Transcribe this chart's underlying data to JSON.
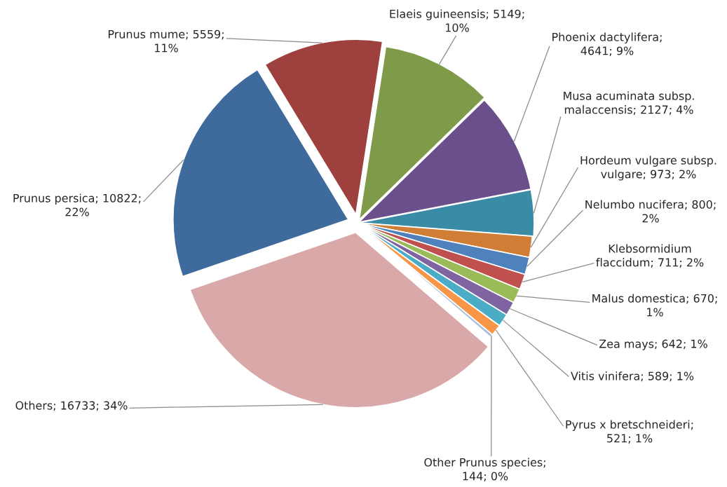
{
  "chart_data": {
    "type": "pie",
    "categories": [
      "Prunus persica; 10822; 22%",
      "Prunus mume; 5559; 11%",
      "Elaeis guineensis; 5149; 10%",
      "Phoenix dactylifera; 4641; 9%",
      "Musa acuminata subsp. malaccensis; 2127; 4%",
      "Hordeum vulgare subsp. vulgare; 973; 2%",
      "Nelumbo nucifera; 800; 2%",
      "Klebsormidium flaccidum; 711; 2%",
      "Malus domestica; 670; 1%",
      "Zea mays; 642; 1%",
      "Vitis vinifera; 589; 1%",
      "Pyrus x bretschneideri; 521; 1%",
      "Other Prunus species; 144; 0%",
      "Others; 16733; 34%"
    ],
    "values": [
      10822,
      5559,
      5149,
      4641,
      2127,
      973,
      800,
      711,
      670,
      642,
      589,
      521,
      144,
      16733
    ],
    "colors": [
      "#3f6a9c",
      "#9e403d",
      "#7f9a48",
      "#6a4f8a",
      "#3a8ca6",
      "#d07d35",
      "#4f81bd",
      "#c0504d",
      "#9bbb59",
      "#8064a2",
      "#4bacc6",
      "#f79646",
      "#a7bfde",
      "#d9a9aa"
    ]
  }
}
